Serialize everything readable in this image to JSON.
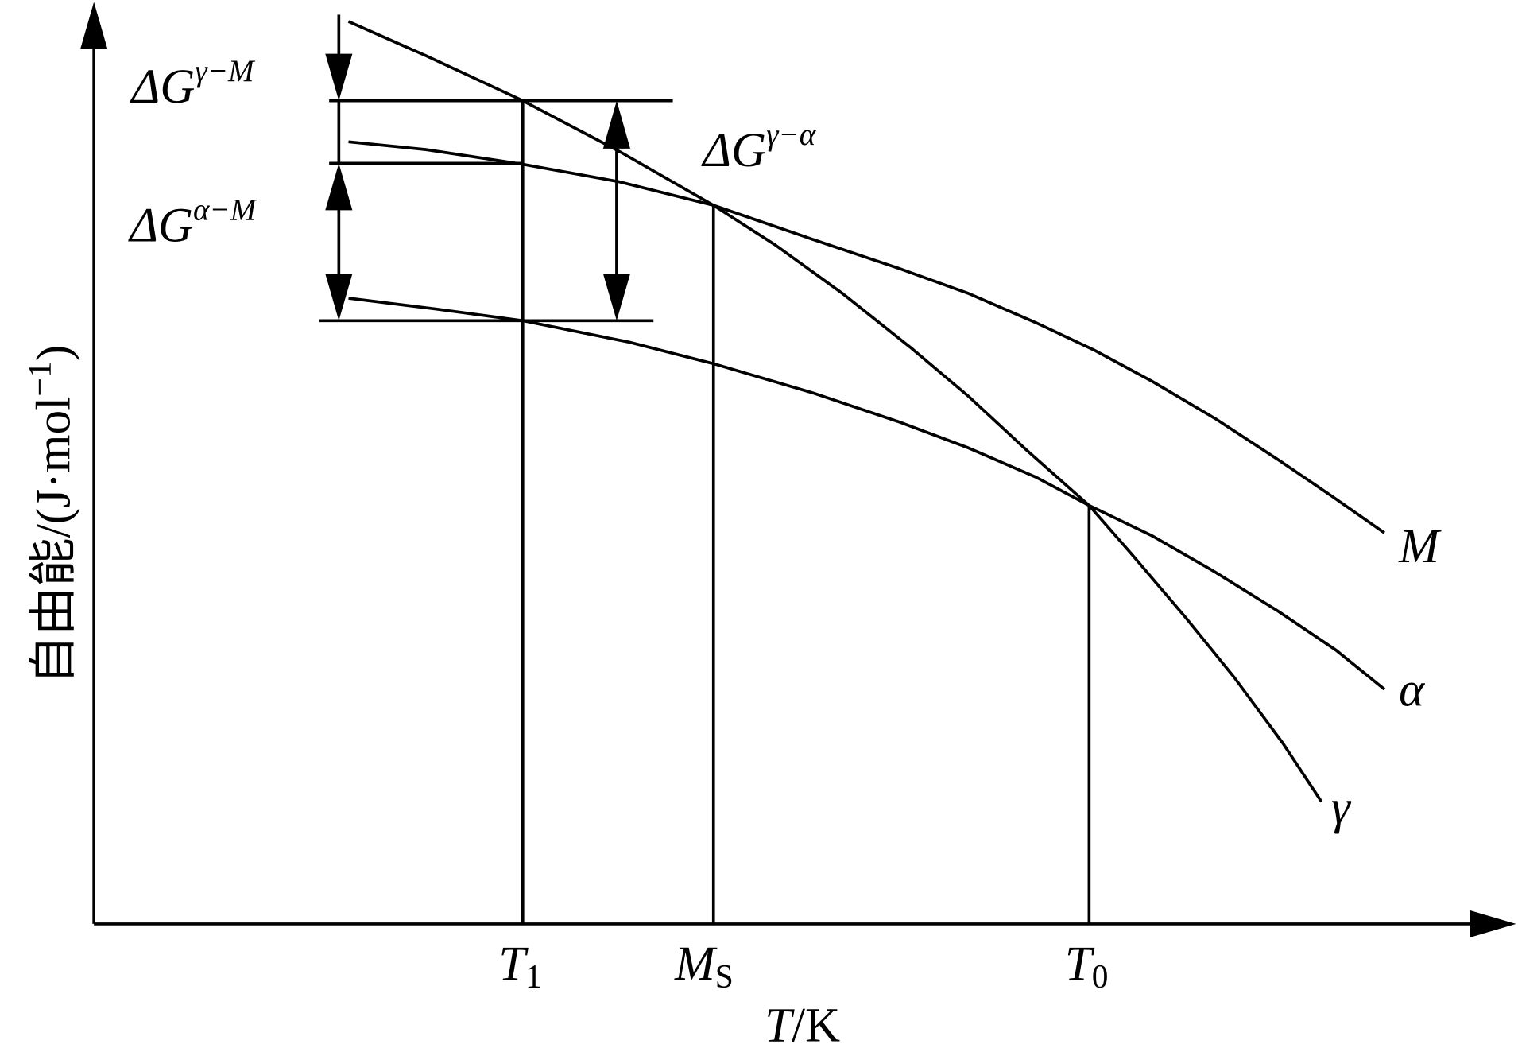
{
  "labels": {
    "dG_gamma_M": {
      "base": "ΔG",
      "sup": "γ−M"
    },
    "dG_alpha_M": {
      "base": "ΔG",
      "sup": "α−M"
    },
    "dG_gamma_alpha": {
      "base": "ΔG",
      "sup": "γ−α"
    },
    "curves": {
      "M": "M",
      "alpha": "α",
      "gamma": "γ"
    },
    "x_marks": [
      {
        "base": "T",
        "sub": "1"
      },
      {
        "base": "M",
        "sub": "S"
      },
      {
        "base": "T",
        "sub": "0"
      }
    ],
    "x_axis": {
      "var": "T",
      "unit": "/K"
    },
    "y_axis": {
      "text": "自由能/(J·mol",
      "sup": "−1",
      "end": ")"
    }
  }
}
